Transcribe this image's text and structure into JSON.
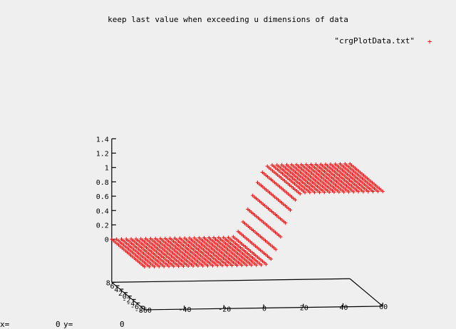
{
  "chart_data": {
    "type": "scatter",
    "title": "keep last value when exceeding u dimensions of data",
    "legend": {
      "label": "\"crgPlotData.txt\"",
      "marker": "+",
      "color": "#ff0000",
      "placement": "top-right"
    },
    "x_ticks": [
      "-60",
      "-40",
      "-20",
      "0",
      "20",
      "40",
      "60"
    ],
    "y_ticks": [
      "-8",
      "-6",
      "-4",
      "-2",
      "0",
      "2",
      "4",
      "6",
      "8"
    ],
    "z_ticks": [
      "0",
      "0.2",
      "0.4",
      "0.6",
      "0.8",
      "1",
      "1.2",
      "1.4"
    ],
    "xlim": [
      -60,
      60
    ],
    "ylim": [
      -8,
      8
    ],
    "zlim": [
      -0.6,
      1.4
    ],
    "series": [
      {
        "color": "#ff0000",
        "marker": "+",
        "surface": {
          "x_range": [
            -60,
            60
          ],
          "y_range": [
            -8,
            8
          ],
          "z_low": 0,
          "z_high": 1,
          "transition": [
            0,
            20
          ],
          "n_u": 50,
          "n_v": 20
        }
      }
    ]
  },
  "status": {
    "x_label": "x=",
    "x_value": "0",
    "y_label": "y=",
    "y_value": "0"
  }
}
